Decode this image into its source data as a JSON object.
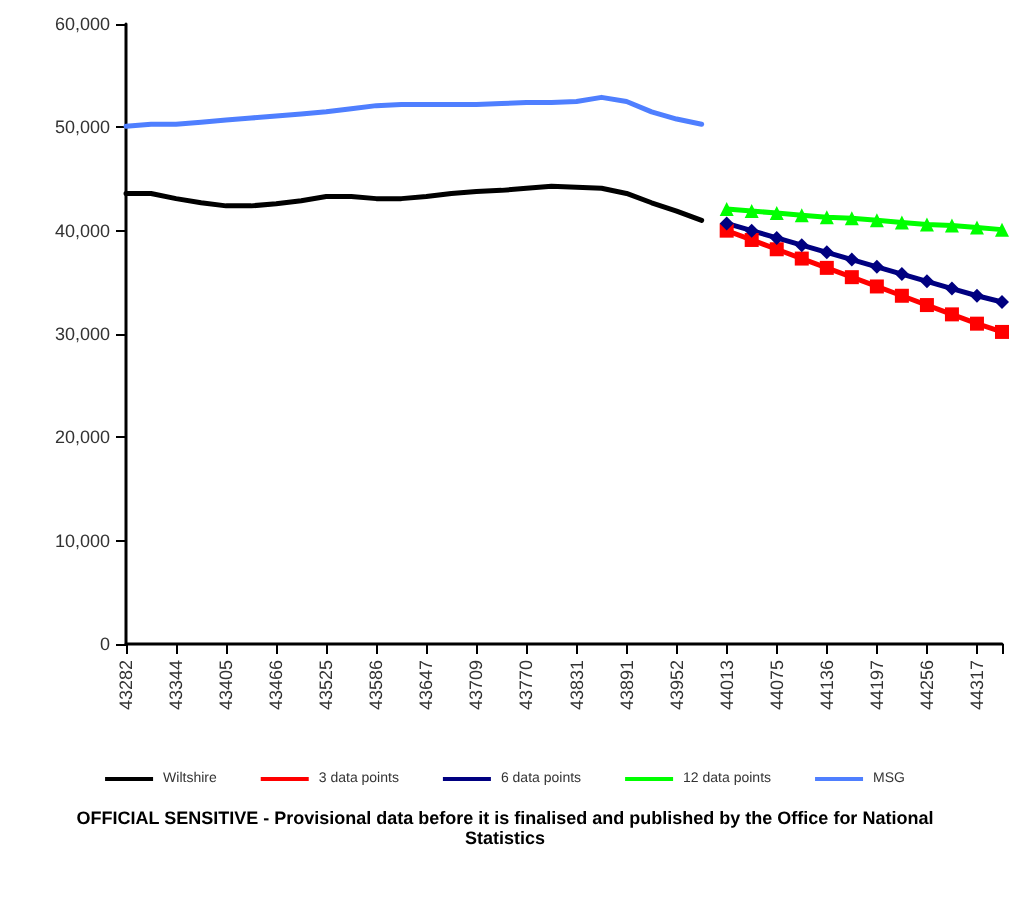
{
  "chart_data": {
    "type": "line",
    "categories": [
      "43282",
      null,
      "43344",
      null,
      "43405",
      null,
      "43466",
      null,
      "43525",
      null,
      "43586",
      null,
      "43647",
      null,
      "43709",
      null,
      "43770",
      null,
      "43831",
      null,
      "43891",
      null,
      "43952",
      null,
      "44013",
      null,
      "44075",
      null,
      "44136",
      null,
      "44197",
      null,
      "44256",
      null,
      "44317",
      null
    ],
    "series": [
      {
        "name": "Wiltshire",
        "color": "#000000",
        "marker": "none",
        "values": [
          43600,
          43600,
          43100,
          42700,
          42400,
          42400,
          42600,
          42900,
          43300,
          43300,
          43100,
          43100,
          43300,
          43600,
          43800,
          43900,
          44100,
          44300,
          44200,
          44100,
          43600,
          42700,
          41900,
          41000,
          null,
          null,
          null,
          null,
          null,
          null,
          null,
          null,
          null,
          null,
          null,
          null
        ]
      },
      {
        "name": "3 data points",
        "color": "#ff0000",
        "marker": "square",
        "values": [
          null,
          null,
          null,
          null,
          null,
          null,
          null,
          null,
          null,
          null,
          null,
          null,
          null,
          null,
          null,
          null,
          null,
          null,
          null,
          null,
          null,
          null,
          null,
          null,
          40000,
          39100,
          38200,
          37300,
          36400,
          35500,
          34600,
          33700,
          32800,
          31900,
          31000,
          30200
        ]
      },
      {
        "name": "6 data points",
        "color": "#000080",
        "marker": "diamond",
        "values": [
          null,
          null,
          null,
          null,
          null,
          null,
          null,
          null,
          null,
          null,
          null,
          null,
          null,
          null,
          null,
          null,
          null,
          null,
          null,
          null,
          null,
          null,
          null,
          null,
          40700,
          40000,
          39300,
          38600,
          37900,
          37200,
          36500,
          35800,
          35100,
          34400,
          33700,
          33100
        ]
      },
      {
        "name": "12 data points",
        "color": "#00ff00",
        "marker": "triangle",
        "values": [
          null,
          null,
          null,
          null,
          null,
          null,
          null,
          null,
          null,
          null,
          null,
          null,
          null,
          null,
          null,
          null,
          null,
          null,
          null,
          null,
          null,
          null,
          null,
          null,
          42100,
          41900,
          41700,
          41500,
          41300,
          41200,
          41000,
          40800,
          40600,
          40500,
          40300,
          40100
        ]
      },
      {
        "name": "MSG",
        "color": "#4f7fff",
        "marker": "none",
        "values": [
          50100,
          50300,
          50300,
          50500,
          50700,
          50900,
          51100,
          51300,
          51500,
          51800,
          52100,
          52200,
          52200,
          52200,
          52200,
          52300,
          52400,
          52400,
          52500,
          52900,
          52500,
          51500,
          50800,
          50300,
          null,
          null,
          null,
          null,
          null,
          null,
          null,
          null,
          null,
          null,
          null,
          null
        ]
      }
    ],
    "ylim": [
      0,
      60000
    ],
    "yticks": [
      {
        "value": 0,
        "label": "0"
      },
      {
        "value": 10000,
        "label": "10,000"
      },
      {
        "value": 20000,
        "label": "20,000"
      },
      {
        "value": 30000,
        "label": "30,000"
      },
      {
        "value": 40000,
        "label": "40,000"
      },
      {
        "value": 50000,
        "label": "50,000"
      },
      {
        "value": 60000,
        "label": "60,000"
      }
    ],
    "grid": false,
    "legend": "bottom",
    "line_style": "solid",
    "annotations": [
      "OFFICIAL SENSITIVE - Provisional data before it is finalised and published by the Office for National Statistics"
    ]
  }
}
